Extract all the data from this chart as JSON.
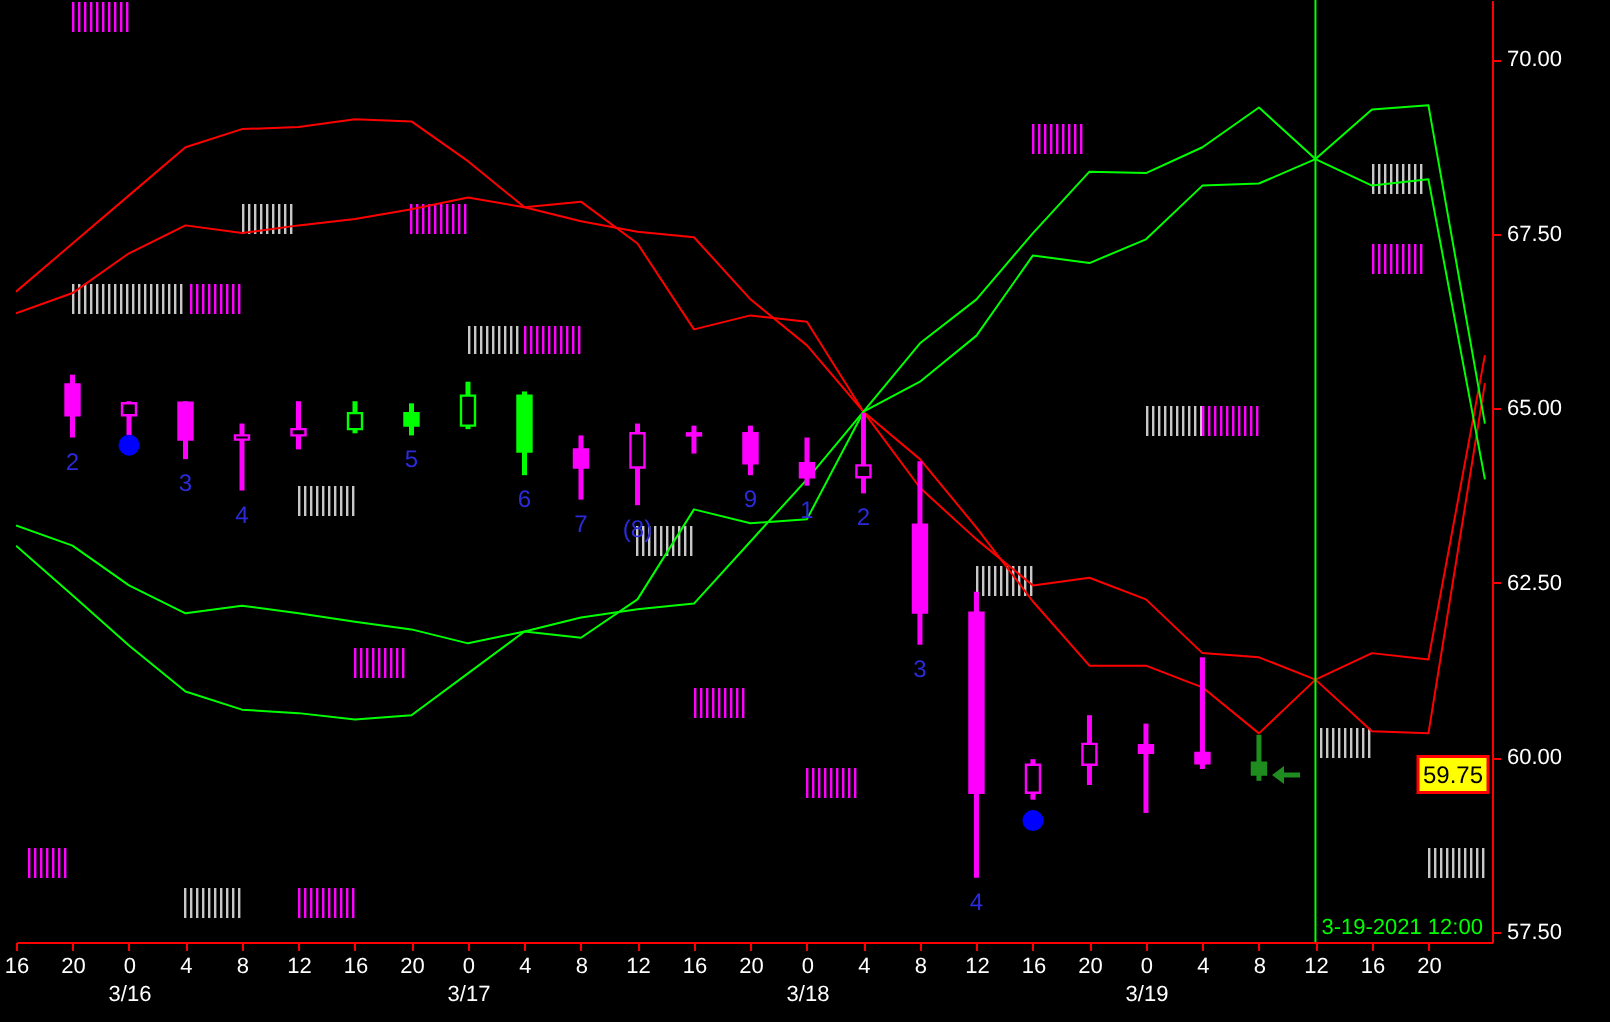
{
  "chart_data": {
    "type": "candlestick",
    "x": [
      "2021-03-15T20:00",
      "2021-03-16T00:00",
      "2021-03-16T04:00",
      "2021-03-16T08:00",
      "2021-03-16T12:00",
      "2021-03-16T16:00",
      "2021-03-16T20:00",
      "2021-03-17T00:00",
      "2021-03-17T04:00",
      "2021-03-17T08:00",
      "2021-03-17T12:00",
      "2021-03-17T16:00",
      "2021-03-17T20:00",
      "2021-03-18T00:00",
      "2021-03-18T04:00",
      "2021-03-18T08:00",
      "2021-03-18T12:00",
      "2021-03-18T16:00",
      "2021-03-18T20:00",
      "2021-03-19T00:00",
      "2021-03-19T04:00",
      "2021-03-19T08:00"
    ],
    "ohlc": [
      [
        65.34,
        65.48,
        64.58,
        64.9
      ],
      [
        64.9,
        65.1,
        64.61,
        65.07
      ],
      [
        65.08,
        65.1,
        64.27,
        64.55
      ],
      [
        64.55,
        64.78,
        63.82,
        64.61
      ],
      [
        64.61,
        65.1,
        64.41,
        64.7
      ],
      [
        64.7,
        65.1,
        64.64,
        64.93
      ],
      [
        64.93,
        65.07,
        64.61,
        64.75
      ],
      [
        64.75,
        65.38,
        64.7,
        65.18
      ],
      [
        65.18,
        65.24,
        64.04,
        64.38
      ],
      [
        64.41,
        64.61,
        63.69,
        64.15
      ],
      [
        64.15,
        64.78,
        63.61,
        64.64
      ],
      [
        64.64,
        64.75,
        64.35,
        64.61
      ],
      [
        64.64,
        64.75,
        64.04,
        64.21
      ],
      [
        64.21,
        64.58,
        63.89,
        64.01
      ],
      [
        64.01,
        64.93,
        63.78,
        64.18
      ],
      [
        63.33,
        64.24,
        61.61,
        62.07
      ],
      [
        62.07,
        62.37,
        58.27,
        59.49
      ],
      [
        59.49,
        59.97,
        59.39,
        59.89
      ],
      [
        59.89,
        60.6,
        59.6,
        60.19
      ],
      [
        60.17,
        60.48,
        59.2,
        60.06
      ],
      [
        60.06,
        61.43,
        59.83,
        59.91
      ],
      [
        59.92,
        60.32,
        59.66,
        59.75
      ]
    ],
    "colors": [
      "#ff00ff",
      "#ff00ff",
      "#ff00ff",
      "#ff00ff",
      "#ff00ff",
      "#00ff00",
      "#00ff00",
      "#00ff00",
      "#00ff00",
      "#ff00ff",
      "#ff00ff",
      "#ff00ff",
      "#ff00ff",
      "#ff00ff",
      "#ff00ff",
      "#ff00ff",
      "#ff00ff",
      "#ff00ff",
      "#ff00ff",
      "#ff00ff",
      "#ff00ff",
      "#1e8c1e"
    ],
    "series": [
      {
        "type": "line",
        "color": "#ff0000",
        "x": [
          "2021-03-15T16:00",
          "2021-03-15T20:00",
          "2021-03-16T00:00",
          "2021-03-16T04:00",
          "2021-03-16T08:00",
          "2021-03-16T12:00",
          "2021-03-16T16:00",
          "2021-03-16T20:00",
          "2021-03-17T00:00",
          "2021-03-17T04:00",
          "2021-03-17T08:00",
          "2021-03-17T12:00",
          "2021-03-17T16:00",
          "2021-03-17T20:00",
          "2021-03-18T00:00",
          "2021-03-18T04:00",
          "2021-03-18T08:00",
          "2021-03-18T12:00",
          "2021-03-18T16:00",
          "2021-03-18T20:00",
          "2021-03-19T00:00",
          "2021-03-19T04:00",
          "2021-03-19T08:00",
          "2021-03-19T12:00",
          "2021-03-19T16:00",
          "2021-03-19T20:00",
          "2021-03-20T00:00"
        ],
        "values": [
          66.67,
          67.36,
          68.05,
          68.74,
          69.0,
          69.03,
          69.14,
          69.11,
          68.54,
          67.88,
          67.68,
          67.53,
          67.45,
          66.56,
          65.9,
          64.95,
          63.86,
          63.12,
          62.46,
          62.57,
          62.26,
          61.49,
          61.43,
          61.11,
          60.37,
          60.34,
          65.36
        ]
      },
      {
        "type": "line",
        "color": "#ff0000",
        "x": [
          "2021-03-15T16:00",
          "2021-03-15T20:00",
          "2021-03-16T00:00",
          "2021-03-16T04:00",
          "2021-03-16T08:00",
          "2021-03-16T12:00",
          "2021-03-16T16:00",
          "2021-03-16T20:00",
          "2021-03-17T00:00",
          "2021-03-17T04:00",
          "2021-03-17T08:00",
          "2021-03-17T12:00",
          "2021-03-17T16:00",
          "2021-03-17T20:00",
          "2021-03-18T00:00",
          "2021-03-18T04:00",
          "2021-03-18T08:00",
          "2021-03-18T12:00",
          "2021-03-18T16:00",
          "2021-03-18T20:00",
          "2021-03-19T00:00",
          "2021-03-19T04:00",
          "2021-03-19T08:00",
          "2021-03-19T12:00",
          "2021-03-19T16:00",
          "2021-03-19T20:00",
          "2021-03-20T00:00"
        ],
        "values": [
          66.36,
          66.65,
          67.22,
          67.62,
          67.51,
          67.62,
          67.71,
          67.85,
          68.02,
          67.88,
          67.96,
          67.36,
          66.13,
          66.33,
          66.24,
          64.95,
          64.27,
          63.29,
          62.23,
          61.31,
          61.31,
          61.0,
          60.34,
          61.11,
          61.49,
          61.4,
          65.76
        ]
      },
      {
        "type": "line",
        "color": "#00ff00",
        "x": [
          "2021-03-15T16:00",
          "2021-03-15T20:00",
          "2021-03-16T00:00",
          "2021-03-16T04:00",
          "2021-03-16T08:00",
          "2021-03-16T12:00",
          "2021-03-16T16:00",
          "2021-03-16T20:00",
          "2021-03-17T00:00",
          "2021-03-17T04:00",
          "2021-03-17T08:00",
          "2021-03-17T12:00",
          "2021-03-17T16:00",
          "2021-03-17T20:00",
          "2021-03-18T00:00",
          "2021-03-18T04:00",
          "2021-03-18T08:00",
          "2021-03-18T12:00",
          "2021-03-18T16:00",
          "2021-03-18T20:00",
          "2021-03-19T00:00",
          "2021-03-19T04:00",
          "2021-03-19T08:00",
          "2021-03-19T12:00",
          "2021-03-19T16:00",
          "2021-03-19T20:00",
          "2021-03-20T00:00"
        ],
        "values": [
          63.32,
          63.03,
          62.46,
          62.06,
          62.17,
          62.06,
          61.94,
          61.83,
          61.63,
          61.8,
          61.71,
          62.26,
          63.55,
          63.35,
          63.41,
          64.95,
          65.93,
          66.56,
          67.51,
          68.39,
          68.37,
          68.74,
          69.31,
          68.57,
          68.19,
          68.28,
          63.98
        ]
      },
      {
        "type": "line",
        "color": "#00ff00",
        "x": [
          "2021-03-15T16:00",
          "2021-03-15T20:00",
          "2021-03-16T00:00",
          "2021-03-16T04:00",
          "2021-03-16T08:00",
          "2021-03-16T12:00",
          "2021-03-16T16:00",
          "2021-03-16T20:00",
          "2021-03-17T00:00",
          "2021-03-17T04:00",
          "2021-03-17T08:00",
          "2021-03-17T12:00",
          "2021-03-17T16:00",
          "2021-03-17T20:00",
          "2021-03-18T00:00",
          "2021-03-18T04:00",
          "2021-03-18T08:00",
          "2021-03-18T12:00",
          "2021-03-18T16:00",
          "2021-03-18T20:00",
          "2021-03-19T00:00",
          "2021-03-19T04:00",
          "2021-03-19T08:00",
          "2021-03-19T12:00",
          "2021-03-19T16:00",
          "2021-03-19T20:00",
          "2021-03-20T00:00"
        ],
        "values": [
          63.03,
          62.32,
          61.6,
          60.94,
          60.68,
          60.63,
          60.54,
          60.6,
          61.2,
          61.8,
          62.0,
          62.12,
          62.2,
          63.09,
          63.98,
          64.95,
          65.38,
          66.04,
          67.19,
          67.08,
          67.42,
          68.19,
          68.22,
          68.57,
          69.28,
          69.34,
          64.78
        ]
      },
      {
        "type": "scatter",
        "color": "#0000ff",
        "marker": "circle",
        "x": [
          "2021-03-16T00:00",
          "2021-03-18T16:00"
        ],
        "values": [
          64.47,
          59.09
        ]
      }
    ],
    "xlim": [
      "2021-03-15T16:00",
      "2021-03-20T00:30"
    ],
    "xticks": [
      {
        "value": "2021-03-15T16:00",
        "label": "16"
      },
      {
        "value": "2021-03-15T20:00",
        "label": "20"
      },
      {
        "value": "2021-03-16T00:00",
        "label": "0\n3/16"
      },
      {
        "value": "2021-03-16T04:00",
        "label": "4"
      },
      {
        "value": "2021-03-16T08:00",
        "label": "8"
      },
      {
        "value": "2021-03-16T12:00",
        "label": "12"
      },
      {
        "value": "2021-03-16T16:00",
        "label": "16"
      },
      {
        "value": "2021-03-16T20:00",
        "label": "20"
      },
      {
        "value": "2021-03-17T00:00",
        "label": "0\n3/17"
      },
      {
        "value": "2021-03-17T04:00",
        "label": "4"
      },
      {
        "value": "2021-03-17T08:00",
        "label": "8"
      },
      {
        "value": "2021-03-17T12:00",
        "label": "12"
      },
      {
        "value": "2021-03-17T16:00",
        "label": "16"
      },
      {
        "value": "2021-03-17T20:00",
        "label": "20"
      },
      {
        "value": "2021-03-18T00:00",
        "label": "0\n3/18"
      },
      {
        "value": "2021-03-18T04:00",
        "label": "4"
      },
      {
        "value": "2021-03-18T08:00",
        "label": "8"
      },
      {
        "value": "2021-03-18T12:00",
        "label": "12"
      },
      {
        "value": "2021-03-18T16:00",
        "label": "16"
      },
      {
        "value": "2021-03-18T20:00",
        "label": "20"
      },
      {
        "value": "2021-03-19T00:00",
        "label": "0\n3/19"
      },
      {
        "value": "2021-03-19T04:00",
        "label": "4"
      },
      {
        "value": "2021-03-19T08:00",
        "label": "8"
      },
      {
        "value": "2021-03-19T12:00",
        "label": "12"
      },
      {
        "value": "2021-03-19T16:00",
        "label": "16"
      },
      {
        "value": "2021-03-19T20:00",
        "label": "20"
      }
    ],
    "ylim": [
      57.35,
      70.85
    ],
    "yticks": [
      {
        "value": 57.5,
        "label": "57.50"
      },
      {
        "value": 60,
        "label": "60.00"
      },
      {
        "value": 62.5,
        "label": "62.50"
      },
      {
        "value": 65,
        "label": "65.00"
      },
      {
        "value": 67.5,
        "label": "67.50"
      },
      {
        "value": 70,
        "label": "70.00"
      }
    ],
    "ref_lines": [
      {
        "axis": "x",
        "value": "2021-03-19T12:00",
        "label": "3-19-2021 12:00",
        "color": "#00ff00"
      }
    ],
    "annotations": [
      {
        "text": "2",
        "x": "2021-03-15T20:00",
        "y": 64.58
      },
      {
        "text": "3",
        "x": "2021-03-16T04:00",
        "y": 64.27
      },
      {
        "text": "4",
        "x": "2021-03-16T08:00",
        "y": 63.82
      },
      {
        "text": "5",
        "x": "2021-03-16T20:00",
        "y": 64.61
      },
      {
        "text": "6",
        "x": "2021-03-17T04:00",
        "y": 64.04
      },
      {
        "text": "7",
        "x": "2021-03-17T08:00",
        "y": 63.69
      },
      {
        "text": "(8)",
        "x": "2021-03-17T12:00",
        "y": 63.61
      },
      {
        "text": "9",
        "x": "2021-03-17T20:00",
        "y": 64.04
      },
      {
        "text": "1",
        "x": "2021-03-18T00:00",
        "y": 63.89
      },
      {
        "text": "2",
        "x": "2021-03-18T04:00",
        "y": 63.78
      },
      {
        "text": "3",
        "x": "2021-03-18T08:00",
        "y": 61.61
      },
      {
        "text": "4",
        "x": "2021-03-18T12:00",
        "y": 58.27
      },
      {
        "text": "59.75",
        "y": 59.75
      }
    ]
  }
}
